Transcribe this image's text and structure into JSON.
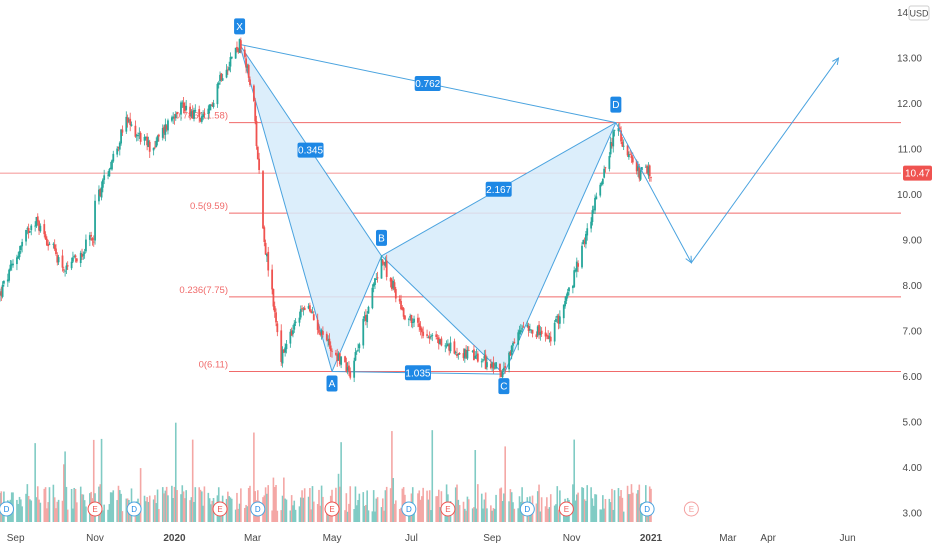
{
  "currency": "USD",
  "last_price": "10.47",
  "chart_data": {
    "type": "candlestick",
    "title": "",
    "y_axis": {
      "ticks": [
        "3.00",
        "4.00",
        "5.00",
        "6.00",
        "7.00",
        "8.00",
        "9.00",
        "10.00",
        "11.00",
        "12.00",
        "13.00",
        "14.00"
      ],
      "ylim": [
        2.8,
        14.1
      ]
    },
    "x_axis": {
      "tick_labels": [
        "Sep",
        "Nov",
        "2020",
        "Mar",
        "May",
        "Jul",
        "Sep",
        "Nov",
        "2021",
        "Mar",
        "Apr",
        "Jun"
      ],
      "bold_labels": [
        "2020",
        "2021"
      ],
      "tick_dates": [
        "2019-09-01",
        "2019-11-01",
        "2020-01-01",
        "2020-03-01",
        "2020-05-01",
        "2020-07-01",
        "2020-09-01",
        "2020-11-01",
        "2021-01-01",
        "2021-03-01",
        "2021-04-01",
        "2021-06-01"
      ],
      "range": [
        "2019-08-20",
        "2021-07-12"
      ]
    },
    "price_path": [
      [
        "2019-08-20",
        7.8
      ],
      [
        "2019-09-15",
        9.5
      ],
      [
        "2019-10-10",
        8.3
      ],
      [
        "2019-10-31",
        9.1
      ],
      [
        "2019-11-01",
        9.8
      ],
      [
        "2019-11-25",
        11.6
      ],
      [
        "2019-12-15",
        11.0
      ],
      [
        "2020-01-05",
        12.0
      ],
      [
        "2020-01-25",
        11.6
      ],
      [
        "2020-02-05",
        12.6
      ],
      [
        "2020-02-20",
        13.3
      ],
      [
        "2020-03-01",
        12.3
      ],
      [
        "2020-03-10",
        9.0
      ],
      [
        "2020-03-23",
        6.4
      ],
      [
        "2020-04-10",
        7.6
      ],
      [
        "2020-05-01",
        6.6
      ],
      [
        "2020-05-15",
        6.1
      ],
      [
        "2020-06-08",
        8.6
      ],
      [
        "2020-06-25",
        7.4
      ],
      [
        "2020-07-15",
        6.9
      ],
      [
        "2020-08-01",
        6.6
      ],
      [
        "2020-08-20",
        6.4
      ],
      [
        "2020-09-10",
        6.1
      ],
      [
        "2020-09-25",
        7.2
      ],
      [
        "2020-10-15",
        6.8
      ],
      [
        "2020-11-01",
        8.0
      ],
      [
        "2020-11-15",
        9.4
      ],
      [
        "2020-12-05",
        11.5
      ],
      [
        "2020-12-20",
        10.5
      ],
      [
        "2021-01-02",
        10.47
      ]
    ],
    "volume_range_end": "2021-01-02",
    "fib_levels": [
      {
        "ratio": "0.786",
        "value": 11.58,
        "label": "0.786(11.58)"
      },
      {
        "ratio": "0.5",
        "value": 9.59,
        "label": "0.5(9.59)"
      },
      {
        "ratio": "0.236",
        "value": 7.75,
        "label": "0.236(7.75)"
      },
      {
        "ratio": "0",
        "value": 6.11,
        "label": "0(6.11)"
      }
    ],
    "current_price_line": 10.47,
    "pattern": {
      "type": "bat",
      "points": [
        {
          "label": "X",
          "date": "2020-02-20",
          "value": 13.3
        },
        {
          "label": "A",
          "date": "2020-05-01",
          "value": 6.11
        },
        {
          "label": "B",
          "date": "2020-06-08",
          "value": 8.65
        },
        {
          "label": "C",
          "date": "2020-09-10",
          "value": 6.05
        },
        {
          "label": "D",
          "date": "2020-12-05",
          "value": 11.58
        }
      ],
      "ratios": [
        {
          "text": "0.762",
          "from": "X",
          "to": "D"
        },
        {
          "text": "0.345",
          "from": "X",
          "to": "B"
        },
        {
          "text": "2.167",
          "from": "B",
          "to": "D"
        },
        {
          "text": "1.035",
          "from": "A",
          "to": "C"
        }
      ]
    },
    "projection": [
      {
        "date": "2020-12-05",
        "value": 11.58
      },
      {
        "date": "2021-02-01",
        "value": 8.5
      },
      {
        "date": "2021-05-25",
        "value": 13.0
      }
    ],
    "events": [
      {
        "type": "D",
        "date": "2019-08-25"
      },
      {
        "type": "E",
        "date": "2019-11-01"
      },
      {
        "type": "D",
        "date": "2019-12-01"
      },
      {
        "type": "E",
        "date": "2020-02-05"
      },
      {
        "type": "D",
        "date": "2020-03-05"
      },
      {
        "type": "E",
        "date": "2020-05-01"
      },
      {
        "type": "D",
        "date": "2020-06-29"
      },
      {
        "type": "E",
        "date": "2020-07-29"
      },
      {
        "type": "D",
        "date": "2020-09-28"
      },
      {
        "type": "E",
        "date": "2020-10-28"
      },
      {
        "type": "D",
        "date": "2020-12-29"
      },
      {
        "type": "E",
        "date": "2021-02-01"
      }
    ],
    "colors": {
      "up": "#26a69a",
      "down": "#ef5350",
      "volume_up": "#80cbc4",
      "volume_down": "#f4a7a5",
      "fib_line": "#f06a6a",
      "pattern": "#4aa3df",
      "pattern_fill": "#d6ebfa",
      "label_bg": "#1e88e5",
      "price_line": "#f07070",
      "axis_text": "#4a4a4a"
    }
  }
}
